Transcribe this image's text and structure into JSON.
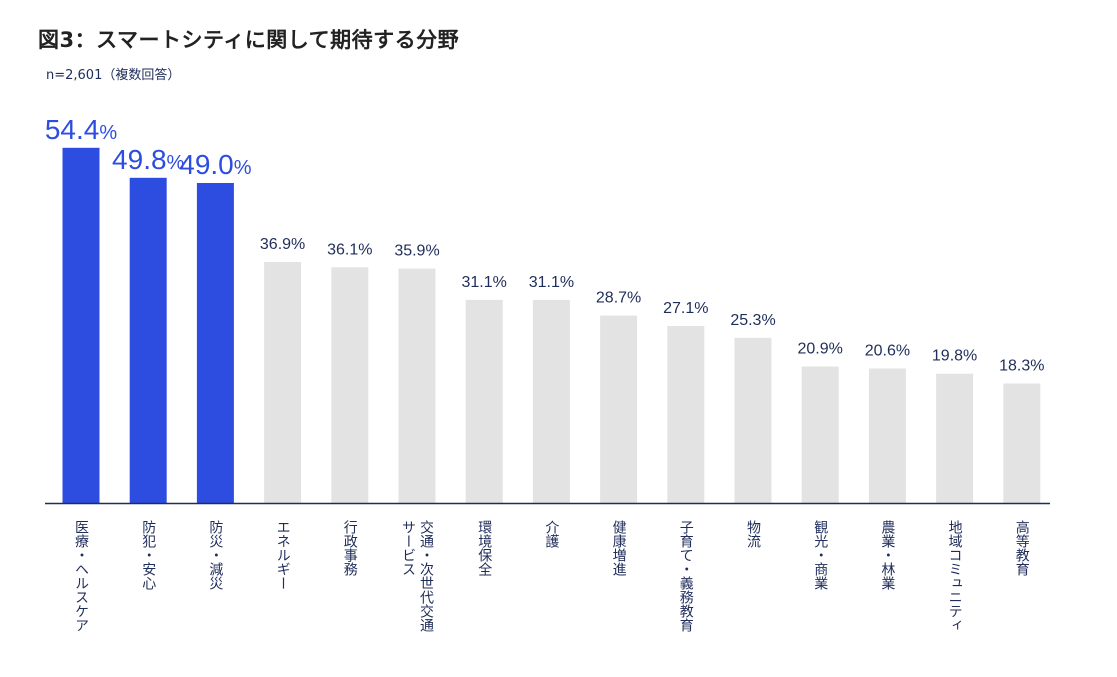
{
  "chart_data": {
    "type": "bar",
    "title": "図3：スマートシティに関して期待する分野",
    "subtitle": "n=2,601（複数回答）",
    "xlabel": "",
    "ylabel": "",
    "ylim": [
      0,
      60
    ],
    "unit": "%",
    "highlight_count": 3,
    "highlight_color": "#2d4de0",
    "bar_color": "#e3e3e3",
    "label_color": "#1f2d5a",
    "categories": [
      "医療・ヘルスケア",
      "防犯・安心",
      "防災・減災",
      "エネルギー",
      "行政事務",
      [
        "交通・次世代交通",
        "サービス"
      ],
      "環境保全",
      "介護",
      "健康増進",
      "子育て・義務教育",
      "物流",
      "観光・商業",
      "農業・林業",
      "地域コミュニティ",
      "高等教育"
    ],
    "values": [
      54.4,
      49.8,
      49.0,
      36.9,
      36.1,
      35.9,
      31.1,
      31.1,
      28.7,
      27.1,
      25.3,
      20.9,
      20.6,
      19.8,
      18.3
    ]
  }
}
